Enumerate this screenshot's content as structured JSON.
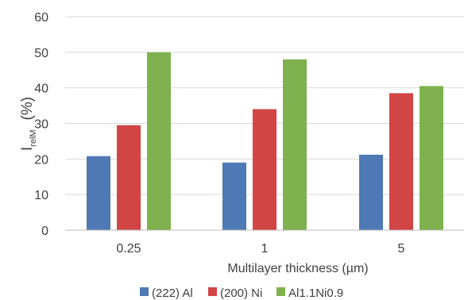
{
  "chart_data": {
    "type": "bar",
    "title": "",
    "xlabel": "Multilayer thickness (µm)",
    "ylabel_main": "I",
    "ylabel_sub": "relM",
    "ylabel_unit": "(%)",
    "ylim": [
      0,
      60
    ],
    "yticks": [
      "0",
      "10",
      "20",
      "30",
      "40",
      "50",
      "60"
    ],
    "categories": [
      "0.25",
      "1",
      "5"
    ],
    "grid": true,
    "legend_position": "bottom",
    "series": [
      {
        "name": "(222) Al",
        "values": [
          20.8,
          19.0,
          21.2
        ],
        "color": "#4e79b5"
      },
      {
        "name": "(200) Ni",
        "values": [
          29.5,
          34.0,
          38.5
        ],
        "color": "#d24545"
      },
      {
        "name": "Al1.1Ni0.9",
        "values": [
          50.0,
          48.0,
          40.5
        ],
        "color": "#7fb24f"
      }
    ]
  }
}
